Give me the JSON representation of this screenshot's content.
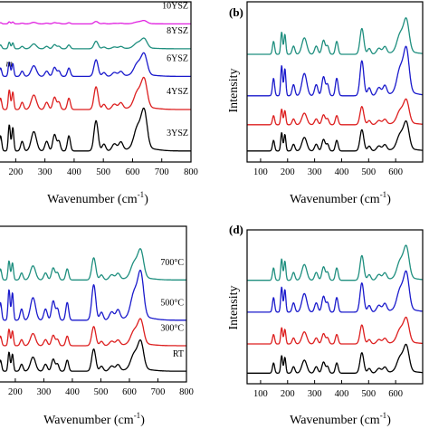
{
  "panels": [
    {
      "id": "a",
      "panel_label": "",
      "xlabel": "Wavenumber (cm",
      "xlabel_sup": "-1",
      "xlabel_close": ")",
      "ylabel": ""
    },
    {
      "id": "b",
      "panel_label": "(b)",
      "xlabel": "Wavenumber (cm",
      "xlabel_sup": "-1",
      "xlabel_close": ")",
      "ylabel": "Intensity"
    },
    {
      "id": "c",
      "panel_label": "",
      "xlabel": "Wavenumber (cm",
      "xlabel_sup": "-1",
      "xlabel_close": ")",
      "ylabel": ""
    },
    {
      "id": "d",
      "panel_label": "(d)",
      "xlabel": "Wavenumber (cm",
      "xlabel_sup": "-1",
      "xlabel_close": ")",
      "ylabel": "Intensity"
    }
  ],
  "chart_data": [
    {
      "type": "line",
      "panel": "a",
      "xlim": [
        140,
        800
      ],
      "xticks": [
        200,
        300,
        400,
        500,
        600,
        700,
        800
      ],
      "annotations": [
        {
          "text": "m",
          "x": 178
        }
      ],
      "series": [
        {
          "name": "10YSZ",
          "color": "#e020e0",
          "offset": 4.6,
          "scale": 0.08
        },
        {
          "name": "8YSZ",
          "color": "#1f8f7f",
          "offset": 3.7,
          "scale": 0.25
        },
        {
          "name": "6YSZ",
          "color": "#1a1acc",
          "offset": 2.7,
          "scale": 0.55
        },
        {
          "name": "4YSZ",
          "color": "#dd1f1f",
          "offset": 1.5,
          "scale": 0.75
        },
        {
          "name": "3YSZ",
          "color": "#000000",
          "offset": 0.0,
          "scale": 1.0
        }
      ]
    },
    {
      "type": "line",
      "panel": "b",
      "xlim": [
        50,
        700
      ],
      "xticks": [
        100,
        200,
        300,
        400,
        500,
        600
      ],
      "series": [
        {
          "color": "#1f8f7f",
          "offset": 3.5,
          "scale": 0.85
        },
        {
          "color": "#1a1acc",
          "offset": 2.0,
          "scale": 1.15
        },
        {
          "color": "#dd1f1f",
          "offset": 0.95,
          "scale": 0.6
        },
        {
          "color": "#000000",
          "offset": 0.0,
          "scale": 0.7
        }
      ]
    },
    {
      "type": "line",
      "panel": "c",
      "xlim": [
        140,
        800
      ],
      "xticks": [
        200,
        300,
        400,
        500,
        600,
        700,
        800
      ],
      "series": [
        {
          "name": "700°C",
          "color": "#1f8f7f",
          "offset": 3.4,
          "scale": 0.75
        },
        {
          "name": "500°C",
          "color": "#1a1acc",
          "offset": 1.9,
          "scale": 1.2
        },
        {
          "name": "300°C",
          "color": "#dd1f1f",
          "offset": 0.95,
          "scale": 0.65
        },
        {
          "name": "RT",
          "color": "#000000",
          "offset": 0.0,
          "scale": 0.75
        }
      ]
    },
    {
      "type": "line",
      "panel": "d",
      "xlim": [
        50,
        700
      ],
      "xticks": [
        100,
        200,
        300,
        400,
        500,
        600
      ],
      "series": [
        {
          "color": "#1f8f7f",
          "offset": 3.5,
          "scale": 0.85
        },
        {
          "color": "#1a1acc",
          "offset": 2.3,
          "scale": 1.0
        },
        {
          "color": "#dd1f1f",
          "offset": 1.1,
          "scale": 0.65
        },
        {
          "color": "#000000",
          "offset": 0.0,
          "scale": 0.7
        }
      ]
    }
  ]
}
